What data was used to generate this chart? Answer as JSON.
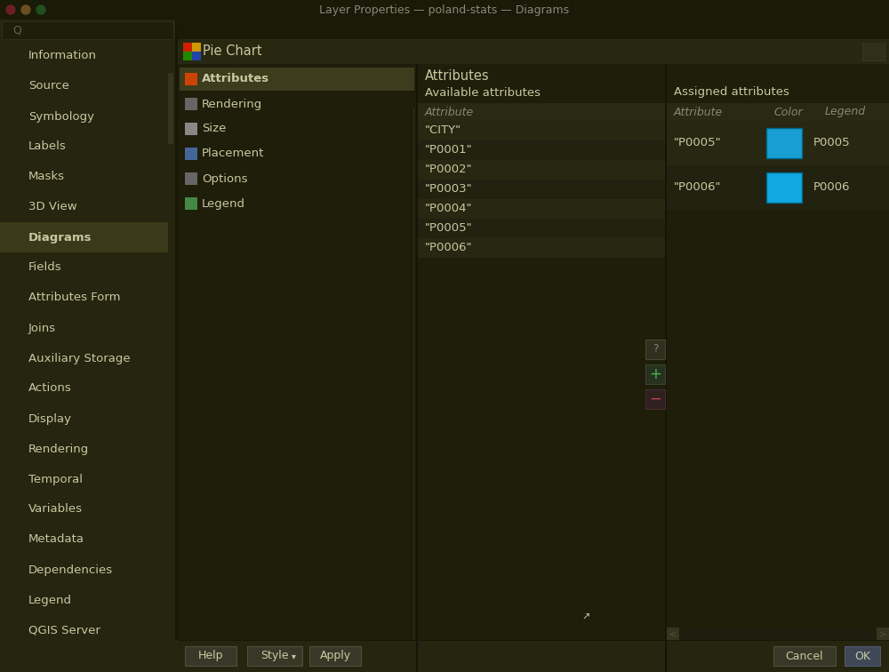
{
  "title_bar_text": "Layer Properties — poland-stats — Diagrams",
  "window_bg": "#2a2a10",
  "title_bar_bg": "#1a1a08",
  "title_bar_text_color": "#888878",
  "left_panel_bg": "#252510",
  "left_panel_selected_bg": "#3a3a1a",
  "left_panel_text": "#c8c8a0",
  "main_bg": "#2a2a12",
  "panel_bg": "#252510",
  "dark_panel_bg": "#1e1e0a",
  "grid_dot_color": "#333320",
  "text_color": "#c8c8a0",
  "dim_text_color": "#888870",
  "header_bg": "#353518",
  "tab_selected_bg": "#3d3d1e",
  "tab_bg": "#252510",
  "attr_header_bg": "#2d2d15",
  "attr_row_bg1": "#272712",
  "attr_row_bg2": "#222210",
  "blue_color1": "#1a9fd4",
  "blue_color2": "#12a8e0",
  "button_bg": "#383828",
  "button_border": "#505038",
  "ok_bg": "#404858",
  "scrollbar_bg": "#1e1e0e",
  "scrollbar_thumb": "#353520",
  "bottom_bar_bg": "#252510",
  "separator_color": "#181808",
  "left_menu_items": [
    "Information",
    "Source",
    "Symbology",
    "Labels",
    "Masks",
    "3D View",
    "Diagrams",
    "Fields",
    "Attributes Form",
    "Joins",
    "Auxiliary Storage",
    "Actions",
    "Display",
    "Rendering",
    "Temporal",
    "Variables",
    "Metadata",
    "Dependencies",
    "Legend",
    "QGIS Server"
  ],
  "left_menu_selected": "Diagrams",
  "tab_items": [
    "Attributes",
    "Rendering",
    "Size",
    "Placement",
    "Options",
    "Legend"
  ],
  "tab_selected": "Attributes",
  "available_attrs": [
    "\"CITY\"",
    "\"P0001\"",
    "\"P0002\"",
    "\"P0003\"",
    "\"P0004\"",
    "\"P0005\"",
    "\"P0006\""
  ],
  "assigned_attrs": [
    {
      "attr": "\"P0005\"",
      "legend": "P0005",
      "color": "#1a9fd4"
    },
    {
      "attr": "\"P0006\"",
      "legend": "P0006",
      "color": "#12a8e0"
    }
  ],
  "pie_chart_title": "Pie Chart",
  "attributes_section": "Attributes",
  "available_label": "Available attributes",
  "assigned_label": "Assigned attributes",
  "col_attribute": "Attribute",
  "col_color": "Color",
  "col_legend": "Legend"
}
